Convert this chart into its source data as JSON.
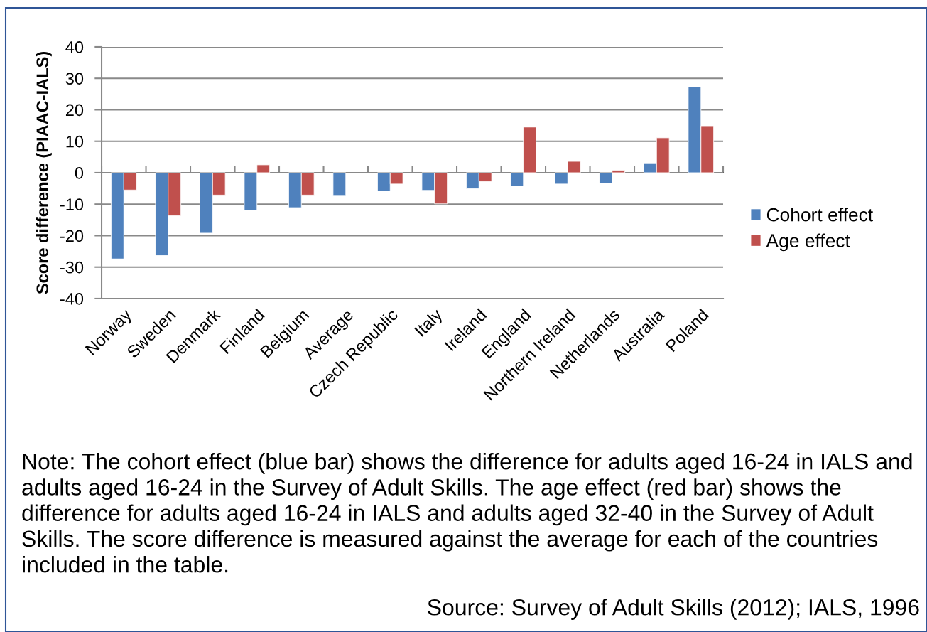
{
  "chart_data": {
    "type": "bar",
    "ylabel": "Score difference (PIAAC-IALS)",
    "categories": [
      "Norway",
      "Sweden",
      "Denmark",
      "Finland",
      "Belgium",
      "Average",
      "Czech Republic",
      "Italy",
      "Ireland",
      "England",
      "Northern Ireland",
      "Netherlands",
      "Australia",
      "Poland"
    ],
    "series": [
      {
        "name": "Cohort effect",
        "color": "#4f81bd",
        "values": [
          -27.4,
          -26.3,
          -19.2,
          -11.9,
          -11.1,
          -7.2,
          -5.8,
          -5.6,
          -5.1,
          -4.2,
          -3.6,
          -3.3,
          3.1,
          27.3
        ]
      },
      {
        "name": "Age effect",
        "color": "#c0504d",
        "values": [
          -5.5,
          -13.6,
          -7.1,
          2.5,
          -7.1,
          null,
          -3.6,
          -9.9,
          -2.8,
          14.5,
          3.6,
          0.8,
          11.1,
          14.9
        ]
      }
    ],
    "ylim": [
      -40,
      40
    ],
    "yticks": [
      -40,
      -30,
      -20,
      -10,
      0,
      10,
      20,
      30,
      40
    ],
    "grid": "y",
    "legend": "right",
    "annotations": [
      "Note: The cohort effect (blue bar) shows the difference for adults aged 16-24 in IALS and adults aged 16-24 in the Survey of Adult Skills. The age effect (red bar) shows the difference for adults aged 16-24 in IALS and adults aged 32-40 in the Survey of Adult Skills. The score difference is measured against the average for each of the countries included in the table.",
      "Source: Survey of Adult Skills (2012); IALS, 1996"
    ]
  }
}
